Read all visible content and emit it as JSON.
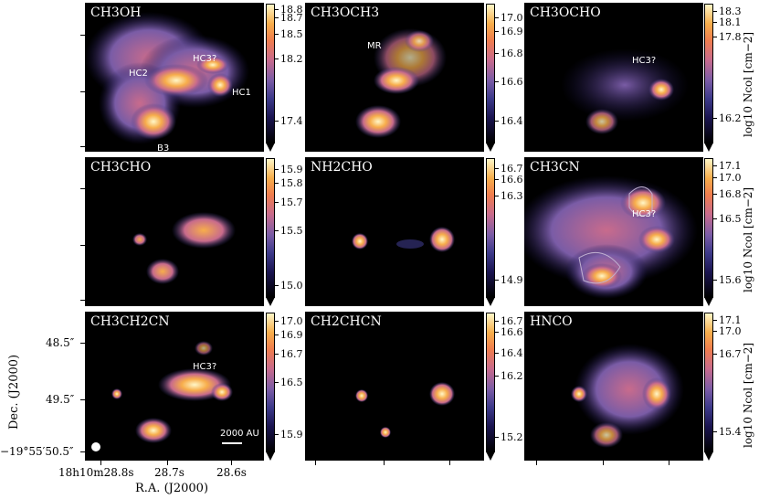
{
  "chart_data": [
    {
      "type": "heatmap",
      "title": "CH3OH",
      "colorbar_ticks": [
        "18.8",
        "18.7",
        "18.5",
        "18.2",
        "17.4"
      ],
      "annotations": [
        "HC2",
        "HC3?",
        "HC1",
        "B3"
      ]
    },
    {
      "type": "heatmap",
      "title": "CH3OCH3",
      "colorbar_ticks": [
        "17.0",
        "16.9",
        "16.8",
        "16.6",
        "16.4"
      ],
      "annotations": [
        "MR"
      ]
    },
    {
      "type": "heatmap",
      "title": "CH3OCHO",
      "colorbar_ticks": [
        "18.3",
        "18.1",
        "17.8",
        "16.2"
      ],
      "annotations": [
        "HC3?"
      ]
    },
    {
      "type": "heatmap",
      "title": "CH3CHO",
      "colorbar_ticks": [
        "15.9",
        "15.8",
        "15.7",
        "15.5",
        "15.0"
      ],
      "annotations": []
    },
    {
      "type": "heatmap",
      "title": "NH2CHO",
      "colorbar_ticks": [
        "16.7",
        "16.6",
        "16.3",
        "14.9"
      ],
      "annotations": []
    },
    {
      "type": "heatmap",
      "title": "CH3CN",
      "colorbar_ticks": [
        "17.1",
        "17.0",
        "16.8",
        "16.5",
        "15.6"
      ],
      "annotations": [
        "HC3?"
      ]
    },
    {
      "type": "heatmap",
      "title": "CH3CH2CN",
      "colorbar_ticks": [
        "17.0",
        "16.9",
        "16.7",
        "16.5",
        "15.9"
      ],
      "annotations": [
        "HC3?"
      ]
    },
    {
      "type": "heatmap",
      "title": "CH2CHCN",
      "colorbar_ticks": [
        "16.7",
        "16.6",
        "16.4",
        "16.2",
        "15.2"
      ],
      "annotations": []
    },
    {
      "type": "heatmap",
      "title": "HNCO",
      "colorbar_ticks": [
        "17.1",
        "17.0",
        "16.7",
        "15.4"
      ],
      "annotations": []
    }
  ],
  "colorbar_label": "log10 Ncol [cm−2]",
  "axes": {
    "xlabel": "R.A. (J2000)",
    "ylabel": "Dec. (J2000)",
    "x_ticks": [
      "18h10m28.8s",
      "28.7s",
      "28.6s"
    ],
    "y_ticks": [
      "48.5″",
      "49.5″",
      "−19°55′50.5″"
    ]
  },
  "scalebar": "2000 AU",
  "colors": {
    "background": "#000000",
    "colormap": [
      "#000000",
      "#3d3a8a",
      "#c86b8c",
      "#ef7d4e",
      "#fff7c8"
    ]
  }
}
